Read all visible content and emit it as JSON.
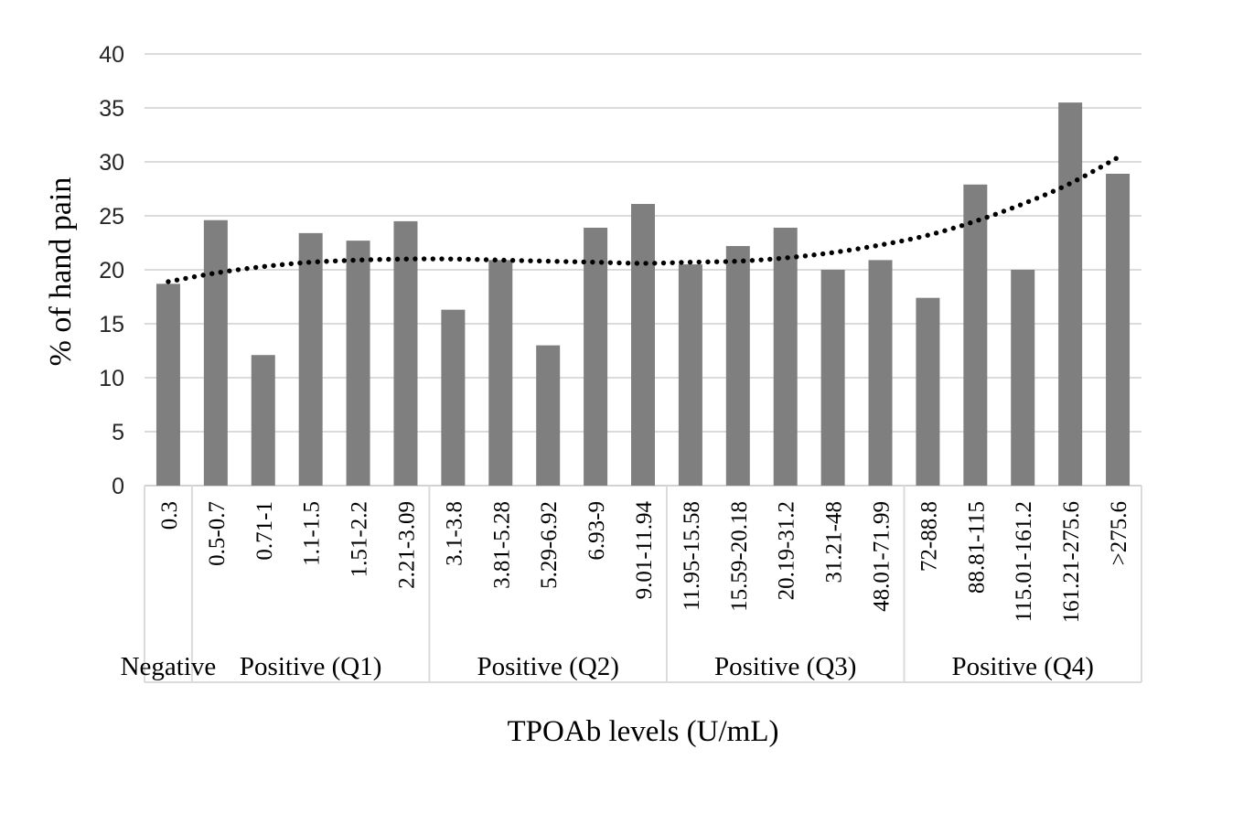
{
  "chart_data": {
    "type": "bar",
    "title": "",
    "xlabel": "TPOAb levels (U/mL)",
    "ylabel": "% of hand pain",
    "ylim": [
      0,
      40
    ],
    "ytick_step": 5,
    "ytick_labels": [
      "0",
      "5",
      "10",
      "15",
      "20",
      "25",
      "30",
      "35",
      "40"
    ],
    "grid": true,
    "legend": "none",
    "categories": [
      "0.3",
      "0.5-0.7",
      "0.71-1",
      "1.1-1.5",
      "1.51-2.2",
      "2.21-3.09",
      "3.1-3.8",
      "3.81-5.28",
      "5.29-6.92",
      "6.93-9",
      "9.01-11.94",
      "11.95-15.58",
      "15.59-20.18",
      "20.19-31.2",
      "31.21-48",
      "48.01-71.99",
      "72-88.8",
      "88.81-115",
      "115.01-161.2",
      "161.21-275.6",
      ">275.6"
    ],
    "values": [
      18.7,
      24.6,
      12.1,
      23.4,
      22.7,
      24.5,
      16.3,
      20.9,
      13.0,
      23.9,
      26.1,
      20.5,
      22.2,
      23.9,
      20.0,
      20.9,
      17.4,
      27.9,
      20.0,
      35.5,
      28.9
    ],
    "groups": [
      {
        "label": "Negative",
        "count": 1
      },
      {
        "label": "Positive (Q1)",
        "count": 5
      },
      {
        "label": "Positive (Q2)",
        "count": 5
      },
      {
        "label": "Positive (Q3)",
        "count": 5
      },
      {
        "label": "Positive (Q4)",
        "count": 5
      }
    ],
    "trendline": {
      "style": "dotted",
      "color": "#000000",
      "values": [
        18.9,
        19.7,
        20.3,
        20.7,
        20.9,
        21.0,
        21.0,
        20.9,
        20.8,
        20.7,
        20.6,
        20.7,
        20.8,
        21.1,
        21.6,
        22.3,
        23.2,
        24.5,
        26.1,
        28.0,
        30.4
      ]
    },
    "colors": {
      "bar": "#7f7f7f",
      "gridline": "#dbdbdb",
      "axis_line": "#d2d2d2",
      "ytick_text": "#262626",
      "category_text": "#000000",
      "group_text": "#000000"
    }
  }
}
